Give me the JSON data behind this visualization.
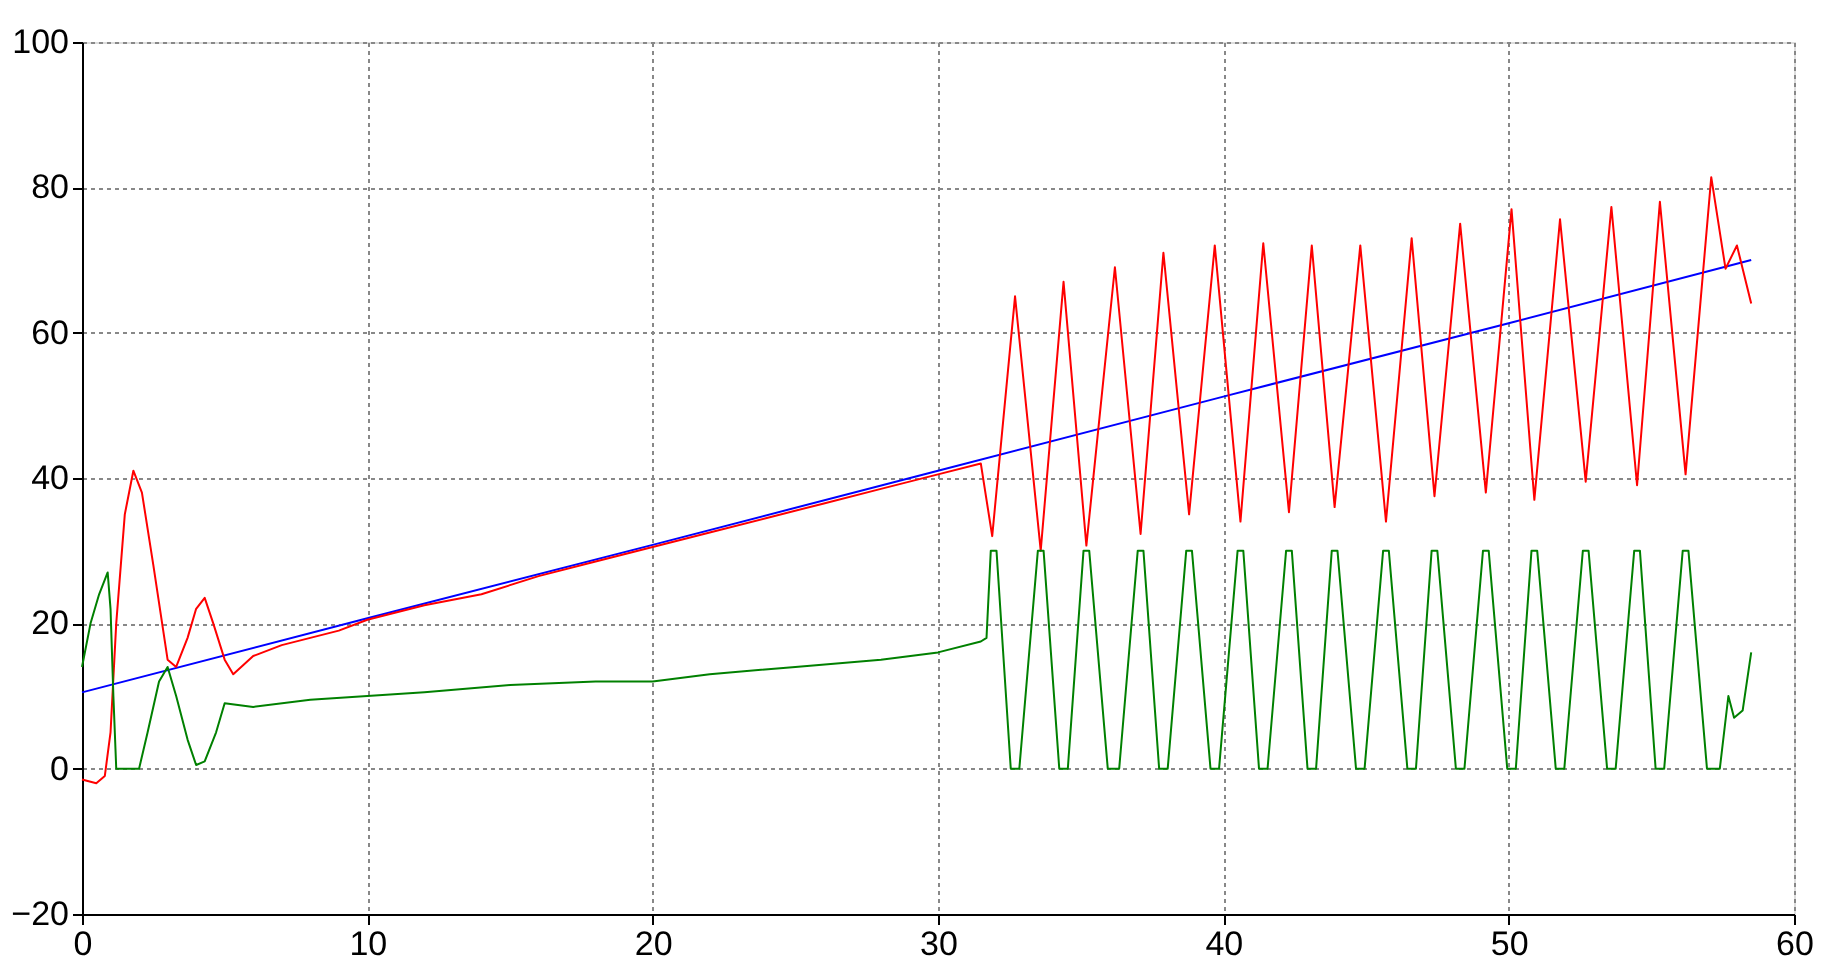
{
  "chart_data": {
    "type": "line",
    "xlim": [
      0,
      60
    ],
    "ylim": [
      -20,
      100
    ],
    "xticks": [
      0,
      10,
      20,
      30,
      40,
      50,
      60
    ],
    "yticks": [
      -20,
      0,
      20,
      40,
      60,
      80,
      100
    ],
    "grid": true,
    "legend": false,
    "marker": "none",
    "line_style": "solid",
    "series": [
      {
        "color": "#0000ff",
        "x": [
          0,
          10,
          20,
          30,
          40,
          50,
          58.5
        ],
        "values": [
          10.5,
          20.7,
          30.8,
          41,
          51.2,
          61.3,
          70
        ]
      },
      {
        "color": "#ff0000",
        "x": [
          0,
          0.5,
          0.8,
          1,
          1.2,
          1.5,
          1.8,
          2.1,
          2.5,
          3,
          3.3,
          3.7,
          4,
          4.3,
          4.6,
          5,
          5.3,
          6,
          7,
          8,
          9,
          10,
          12,
          14,
          16,
          18,
          20,
          22,
          24,
          26,
          28,
          30,
          31.5,
          31.9,
          32.7,
          33.6,
          34.4,
          35.2,
          36.2,
          37.1,
          37.9,
          38.8,
          39.7,
          40.6,
          41.4,
          42.3,
          43.1,
          43.9,
          44.8,
          45.7,
          46.6,
          47.4,
          48.3,
          49.2,
          50.1,
          50.9,
          51.8,
          52.7,
          53.6,
          54.5,
          55.3,
          56.2,
          57.1,
          57.6,
          58,
          58.5
        ],
        "values": [
          -1.5,
          -2,
          -1,
          5,
          20,
          35,
          41,
          38,
          28,
          15,
          14,
          18,
          22,
          23.5,
          20,
          15,
          13,
          15.5,
          17,
          18,
          19,
          20.5,
          22.5,
          24,
          26.5,
          28.5,
          30.5,
          32.5,
          34.5,
          36.5,
          38.5,
          40.5,
          42,
          32,
          65,
          30,
          67,
          30.7,
          69,
          32.3,
          71,
          35,
          72,
          34,
          72.3,
          35.3,
          72,
          36,
          72,
          34,
          73,
          37.5,
          75,
          38,
          77,
          37,
          75.6,
          39.5,
          77.3,
          39,
          78,
          40.5,
          81.4,
          68.8,
          72,
          64
        ]
      },
      {
        "color": "#008000",
        "x": [
          0,
          0.3,
          0.6,
          0.9,
          1,
          1.1,
          1.2,
          2,
          2.3,
          2.7,
          3,
          3.3,
          3.7,
          4,
          4.3,
          4.7,
          5,
          6,
          8,
          10,
          12,
          15,
          18,
          20,
          22,
          25,
          28,
          30,
          31.5,
          31.7,
          31.85,
          32.05,
          32.55,
          32.85,
          33.5,
          33.7,
          34.25,
          34.55,
          35.1,
          35.3,
          35.95,
          36.35,
          37.0,
          37.2,
          37.75,
          38.05,
          38.7,
          38.9,
          39.55,
          39.85,
          40.5,
          40.7,
          41.25,
          41.55,
          42.2,
          42.4,
          42.95,
          43.25,
          43.8,
          44.0,
          44.65,
          44.95,
          45.6,
          45.8,
          46.45,
          46.75,
          47.3,
          47.5,
          48.15,
          48.45,
          49.1,
          49.3,
          49.95,
          50.25,
          50.8,
          51.0,
          51.65,
          51.95,
          52.6,
          52.8,
          53.45,
          53.75,
          54.4,
          54.6,
          55.15,
          55.45,
          56.1,
          56.3,
          56.95,
          57.4,
          57.7,
          57.9,
          58.2,
          58.5
        ],
        "values": [
          14,
          20,
          24,
          27,
          22,
          10,
          0,
          0,
          5,
          12,
          14,
          10,
          4,
          0.5,
          1,
          5,
          9,
          8.5,
          9.5,
          10,
          10.5,
          11.5,
          12,
          12,
          13,
          14,
          15,
          16,
          17.5,
          18,
          30,
          30,
          0,
          0,
          30,
          30,
          0,
          0,
          30,
          30,
          0,
          0,
          30,
          30,
          0,
          0,
          30,
          30,
          0,
          0,
          30,
          30,
          0,
          0,
          30,
          30,
          0,
          0,
          30,
          30,
          0,
          0,
          30,
          30,
          0,
          0,
          30,
          30,
          0,
          0,
          30,
          30,
          0,
          0,
          30,
          30,
          0,
          0,
          30,
          30,
          0,
          0,
          30,
          30,
          0,
          0,
          30,
          30,
          0,
          0,
          10,
          7,
          8,
          16
        ]
      }
    ]
  }
}
